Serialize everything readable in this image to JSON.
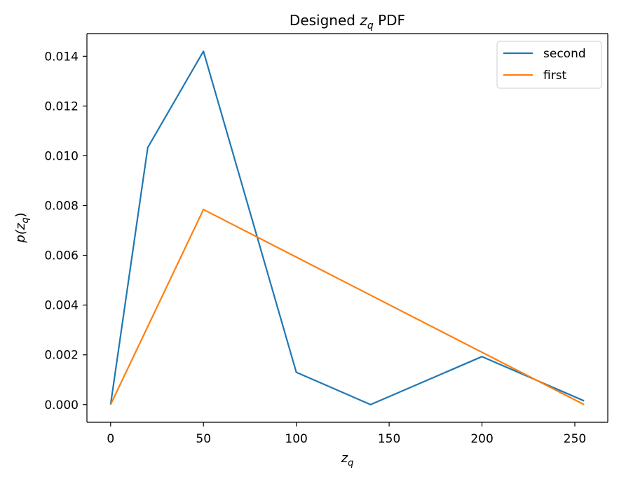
{
  "chart_data": {
    "type": "line",
    "title": "Designed z_q PDF",
    "title_parts": {
      "prefix": "Designed ",
      "var": "z",
      "sub": "q",
      "suffix": " PDF"
    },
    "xlabel": "z_q",
    "xlabel_parts": {
      "var": "z",
      "sub": "q"
    },
    "ylabel": "p(z_q)",
    "ylabel_parts": {
      "fn": "p(",
      "var": "z",
      "sub": "q",
      "close": ")"
    },
    "xlim": [
      -12.75,
      267.75
    ],
    "ylim": [
      -0.00071,
      0.01491
    ],
    "xticks": [
      0,
      50,
      100,
      150,
      200,
      250
    ],
    "xtick_labels": [
      "0",
      "50",
      "100",
      "150",
      "200",
      "250"
    ],
    "yticks": [
      0.0,
      0.002,
      0.004,
      0.006,
      0.008,
      0.01,
      0.012,
      0.014
    ],
    "ytick_labels": [
      "0.000",
      "0.002",
      "0.004",
      "0.006",
      "0.008",
      "0.010",
      "0.012",
      "0.014"
    ],
    "grid": false,
    "legend_position": "top-right",
    "series": [
      {
        "name": "second",
        "color": "#1f77b4",
        "x": [
          0,
          20,
          50,
          100,
          140,
          200,
          255
        ],
        "y": [
          0.0,
          0.01033,
          0.0142,
          0.0013,
          0.0,
          0.00193,
          0.00015
        ]
      },
      {
        "name": "first",
        "color": "#ff7f0e",
        "x": [
          0,
          50,
          255
        ],
        "y": [
          0.0,
          0.00784,
          0.0
        ]
      }
    ]
  }
}
